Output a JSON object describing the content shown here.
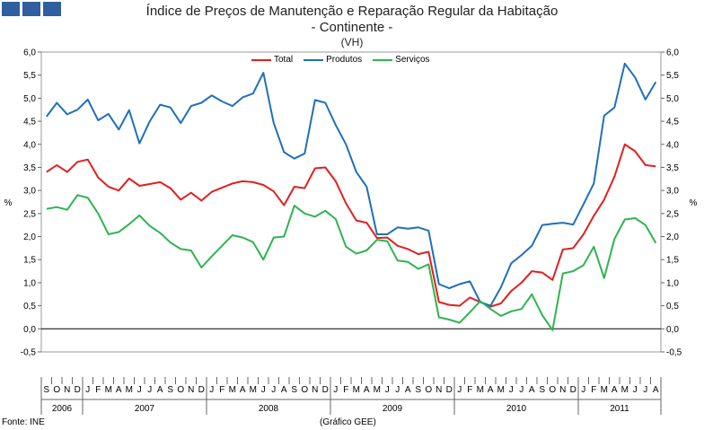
{
  "chart_data": {
    "type": "line",
    "title": "Índice de Preços de Manutenção e Reparação Regular da Habitação",
    "subtitle": "- Continente -",
    "subtitle2": "(VH)",
    "ylabel": "%",
    "ylabel_right": "%",
    "ylim": [
      -0.5,
      6.0
    ],
    "yticks": [
      "-0,5",
      "0,0",
      "0,5",
      "1,0",
      "1,5",
      "2,0",
      "2,5",
      "3,0",
      "3,5",
      "4,0",
      "4,5",
      "5,0",
      "5,5",
      "6,0"
    ],
    "grid": false,
    "legend_position": "top",
    "months": [
      "S",
      "O",
      "N",
      "D",
      "J",
      "F",
      "M",
      "A",
      "M",
      "J",
      "J",
      "A",
      "S",
      "O",
      "N",
      "D",
      "J",
      "F",
      "M",
      "A",
      "M",
      "J",
      "J",
      "A",
      "S",
      "O",
      "N",
      "D",
      "J",
      "F",
      "M",
      "A",
      "M",
      "J",
      "J",
      "A",
      "S",
      "O",
      "N",
      "D",
      "J",
      "F",
      "M",
      "A",
      "M",
      "J",
      "J",
      "A",
      "S",
      "O",
      "N",
      "D",
      "J",
      "F",
      "M",
      "A",
      "M",
      "J",
      "J",
      "A"
    ],
    "years": [
      {
        "label": "2006",
        "start": 0,
        "end": 4
      },
      {
        "label": "2007",
        "start": 4,
        "end": 16
      },
      {
        "label": "2008",
        "start": 16,
        "end": 28
      },
      {
        "label": "2009",
        "start": 28,
        "end": 40
      },
      {
        "label": "2010",
        "start": 40,
        "end": 52
      },
      {
        "label": "2011",
        "start": 52,
        "end": 60
      }
    ],
    "series": [
      {
        "name": "Total",
        "color": "#e02020",
        "values": [
          3.4,
          3.55,
          3.4,
          3.62,
          3.67,
          3.28,
          3.08,
          3.0,
          3.26,
          3.1,
          3.14,
          3.18,
          3.05,
          2.8,
          2.95,
          2.78,
          2.97,
          3.06,
          3.15,
          3.2,
          3.18,
          3.12,
          2.98,
          2.68,
          3.08,
          3.05,
          3.48,
          3.5,
          3.2,
          2.72,
          2.35,
          2.3,
          1.97,
          1.98,
          1.8,
          1.73,
          1.62,
          1.67,
          0.58,
          0.52,
          0.5,
          0.68,
          0.58,
          0.48,
          0.55,
          0.82,
          1.0,
          1.25,
          1.22,
          1.06,
          1.72,
          1.75,
          2.05,
          2.45,
          2.8,
          3.3,
          4.0,
          3.85,
          3.55,
          3.52
        ]
      },
      {
        "name": "Produtos",
        "color": "#2070b8",
        "values": [
          4.6,
          4.9,
          4.65,
          4.75,
          4.97,
          4.52,
          4.66,
          4.32,
          4.74,
          4.02,
          4.5,
          4.86,
          4.8,
          4.46,
          4.83,
          4.9,
          5.06,
          4.93,
          4.83,
          5.02,
          5.1,
          5.55,
          4.46,
          3.83,
          3.69,
          3.8,
          4.96,
          4.9,
          4.42,
          4.0,
          3.4,
          3.08,
          2.05,
          2.05,
          2.2,
          2.17,
          2.2,
          2.13,
          0.97,
          0.88,
          0.97,
          1.03,
          0.58,
          0.5,
          0.9,
          1.42,
          1.6,
          1.8,
          2.25,
          2.28,
          2.3,
          2.26,
          2.7,
          3.15,
          4.62,
          4.8,
          5.75,
          5.45,
          4.97,
          5.35
        ]
      },
      {
        "name": "Serviços",
        "color": "#2eb450",
        "values": [
          2.6,
          2.64,
          2.58,
          2.9,
          2.84,
          2.5,
          2.05,
          2.1,
          2.27,
          2.46,
          2.23,
          2.08,
          1.87,
          1.73,
          1.7,
          1.33,
          1.57,
          1.8,
          2.03,
          1.98,
          1.88,
          1.5,
          1.98,
          2.0,
          2.67,
          2.5,
          2.43,
          2.56,
          2.38,
          1.78,
          1.63,
          1.7,
          1.93,
          1.9,
          1.48,
          1.45,
          1.3,
          1.4,
          0.25,
          0.2,
          0.13,
          0.36,
          0.6,
          0.43,
          0.28,
          0.38,
          0.43,
          0.75,
          0.3,
          -0.03,
          1.2,
          1.25,
          1.38,
          1.78,
          1.1,
          1.95,
          2.37,
          2.4,
          2.25,
          1.86
        ]
      }
    ]
  },
  "source_label": "Fonte: INE",
  "note_label": "(Gráfico GEE)"
}
